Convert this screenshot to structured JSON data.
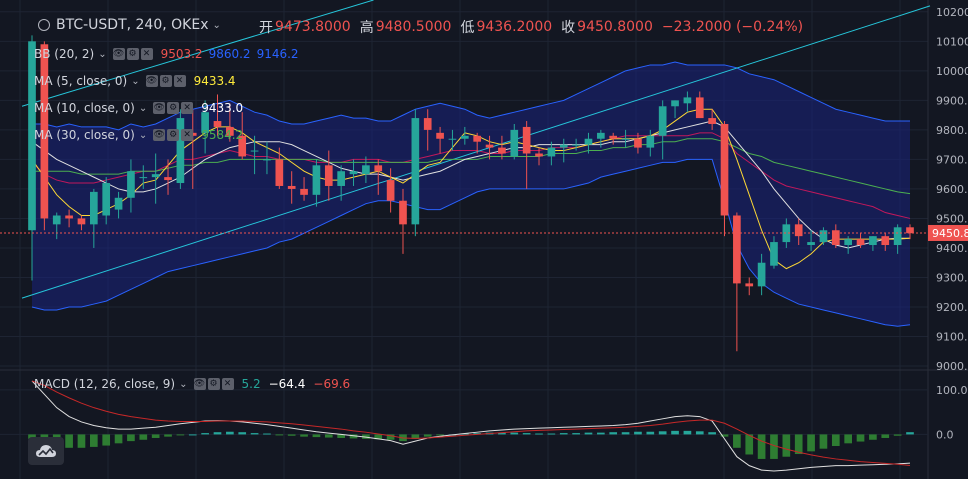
{
  "header": {
    "symbol": "BTC-USDT, 240, OKEx",
    "caret": "⌄",
    "ohlc": [
      {
        "key": "开",
        "value": "9473.8000"
      },
      {
        "key": "高",
        "value": "9480.5000"
      },
      {
        "key": "低",
        "value": "9436.2000"
      },
      {
        "key": "收",
        "value": "9450.8000"
      }
    ],
    "change": "−23.2000 (−0.24%)"
  },
  "indicators": [
    {
      "label": "BB (20, 2)",
      "values": [
        "9503.2",
        "9860.2",
        "9146.2"
      ],
      "colors": [
        "#ef5350",
        "#2962ff",
        "#2962ff"
      ]
    },
    {
      "label": "MA (5, close, 0)",
      "values": [
        "9433.4"
      ],
      "colors": [
        "#ffeb3b"
      ]
    },
    {
      "label": "MA (10, close, 0)",
      "values": [
        "9433.0"
      ],
      "colors": [
        "#ffffff"
      ]
    },
    {
      "label": "MA (30, close, 0)",
      "values": [
        "9584.2"
      ],
      "colors": [
        "#4caf50"
      ]
    }
  ],
  "macd": {
    "label": "MACD (12, 26, close, 9)",
    "values": [
      "5.2",
      "−64.4",
      "−69.6"
    ],
    "colors": [
      "#26a69a",
      "#ffffff",
      "#ef5350"
    ]
  },
  "buttons": {
    "eye": "👁",
    "gear": "⚙",
    "close": "✕"
  },
  "price_label": "9450.8",
  "colors": {
    "up": "#26a69a",
    "down": "#ef5350",
    "bg": "#131722",
    "grid": "#1e2433",
    "band": "#1a237e",
    "trend": "#26c6da"
  },
  "chart_data": [
    {
      "type": "candlestick",
      "title": "BTC-USDT, 240, OKEx",
      "y_ticks": [
        9000,
        9100,
        9200,
        9300,
        9400,
        9500,
        9600,
        9700,
        9800,
        9900,
        10000,
        10100,
        10200
      ],
      "y_tick_labels": [
        "9000.0000",
        "9100.0000",
        "9200.0000",
        "9300.0000",
        "9400.0000",
        "9500.0000",
        "9600.0000",
        "9700.0000",
        "9800.0000",
        "9900.0000",
        "10000.0000",
        "10100.0000",
        "10200.0000"
      ],
      "ylim": [
        8990,
        10240
      ],
      "last_price": 9450.8,
      "candles": [
        [
          9460,
          10120,
          9290,
          10100
        ],
        [
          10090,
          10100,
          9460,
          9500
        ],
        [
          9480,
          9520,
          9430,
          9510
        ],
        [
          9510,
          9530,
          9470,
          9500
        ],
        [
          9500,
          9510,
          9460,
          9480
        ],
        [
          9480,
          9600,
          9400,
          9590
        ],
        [
          9510,
          9640,
          9480,
          9620
        ],
        [
          9530,
          9590,
          9500,
          9570
        ],
        [
          9570,
          9700,
          9520,
          9660
        ],
        [
          9640,
          9680,
          9600,
          9640
        ],
        [
          9640,
          9720,
          9550,
          9650
        ],
        [
          9640,
          9700,
          9580,
          9630
        ],
        [
          9620,
          9870,
          9600,
          9840
        ],
        [
          9790,
          9870,
          9600,
          9780
        ],
        [
          9790,
          9900,
          9720,
          9860
        ],
        [
          9830,
          9920,
          9780,
          9810
        ],
        [
          9810,
          9890,
          9760,
          9780
        ],
        [
          9780,
          9860,
          9700,
          9710
        ],
        [
          9730,
          9780,
          9650,
          9730
        ],
        [
          9700,
          9760,
          9650,
          9700
        ],
        [
          9700,
          9740,
          9600,
          9610
        ],
        [
          9610,
          9660,
          9550,
          9600
        ],
        [
          9600,
          9640,
          9560,
          9580
        ],
        [
          9580,
          9700,
          9540,
          9680
        ],
        [
          9680,
          9730,
          9560,
          9610
        ],
        [
          9610,
          9680,
          9560,
          9660
        ],
        [
          9650,
          9700,
          9610,
          9660
        ],
        [
          9650,
          9710,
          9620,
          9680
        ],
        [
          9680,
          9700,
          9580,
          9660
        ],
        [
          9630,
          9670,
          9520,
          9560
        ],
        [
          9560,
          9600,
          9380,
          9480
        ],
        [
          9480,
          9870,
          9440,
          9840
        ],
        [
          9840,
          9870,
          9730,
          9800
        ],
        [
          9790,
          9810,
          9720,
          9770
        ],
        [
          9770,
          9800,
          9730,
          9770
        ],
        [
          9770,
          9810,
          9750,
          9780
        ],
        [
          9780,
          9790,
          9720,
          9760
        ],
        [
          9750,
          9780,
          9700,
          9740
        ],
        [
          9740,
          9780,
          9700,
          9720
        ],
        [
          9710,
          9820,
          9700,
          9800
        ],
        [
          9810,
          9830,
          9600,
          9720
        ],
        [
          9720,
          9740,
          9680,
          9710
        ],
        [
          9710,
          9760,
          9680,
          9740
        ],
        [
          9740,
          9770,
          9690,
          9750
        ],
        [
          9750,
          9770,
          9730,
          9750
        ],
        [
          9750,
          9790,
          9720,
          9770
        ],
        [
          9770,
          9800,
          9740,
          9790
        ],
        [
          9780,
          9790,
          9750,
          9770
        ],
        [
          9770,
          9800,
          9740,
          9770
        ],
        [
          9770,
          9790,
          9720,
          9740
        ],
        [
          9740,
          9800,
          9710,
          9780
        ],
        [
          9780,
          9900,
          9700,
          9880
        ],
        [
          9880,
          9900,
          9840,
          9900
        ],
        [
          9890,
          9930,
          9860,
          9910
        ],
        [
          9910,
          9930,
          9840,
          9840
        ],
        [
          9840,
          9870,
          9800,
          9820
        ],
        [
          9820,
          9830,
          9440,
          9510
        ],
        [
          9510,
          9520,
          9050,
          9280
        ],
        [
          9280,
          9300,
          9240,
          9270
        ],
        [
          9270,
          9380,
          9240,
          9350
        ],
        [
          9340,
          9440,
          9330,
          9420
        ],
        [
          9420,
          9500,
          9400,
          9480
        ],
        [
          9480,
          9500,
          9410,
          9440
        ],
        [
          9410,
          9460,
          9390,
          9420
        ],
        [
          9420,
          9470,
          9410,
          9460
        ],
        [
          9460,
          9480,
          9400,
          9410
        ],
        [
          9410,
          9440,
          9380,
          9430
        ],
        [
          9430,
          9450,
          9400,
          9410
        ],
        [
          9410,
          9440,
          9390,
          9440
        ],
        [
          9440,
          9450,
          9390,
          9410
        ],
        [
          9410,
          9480,
          9380,
          9470
        ],
        [
          9470,
          9480,
          9430,
          9450
        ]
      ],
      "bb_upper": [
        9820,
        9820,
        9810,
        9820,
        9810,
        9810,
        9810,
        9800,
        9820,
        9810,
        9820,
        9840,
        9860,
        9870,
        9880,
        9890,
        9900,
        9880,
        9860,
        9850,
        9830,
        9820,
        9820,
        9830,
        9840,
        9850,
        9840,
        9840,
        9830,
        9830,
        9850,
        9870,
        9880,
        9890,
        9880,
        9870,
        9850,
        9840,
        9850,
        9860,
        9870,
        9880,
        9890,
        9900,
        9920,
        9940,
        9960,
        9980,
        10000,
        10010,
        10020,
        10020,
        10030,
        10020,
        10020,
        10020,
        10020,
        10010,
        9990,
        9980,
        9970,
        9950,
        9930,
        9910,
        9890,
        9870,
        9860,
        9850,
        9840,
        9830,
        9830,
        9830
      ],
      "bb_middle": [
        9690,
        9650,
        9630,
        9620,
        9620,
        9620,
        9630,
        9640,
        9650,
        9660,
        9660,
        9680,
        9700,
        9700,
        9710,
        9720,
        9730,
        9720,
        9710,
        9710,
        9700,
        9700,
        9700,
        9690,
        9690,
        9690,
        9700,
        9700,
        9700,
        9690,
        9690,
        9700,
        9710,
        9720,
        9730,
        9730,
        9730,
        9720,
        9720,
        9730,
        9730,
        9730,
        9740,
        9740,
        9740,
        9750,
        9760,
        9770,
        9780,
        9780,
        9780,
        9780,
        9780,
        9780,
        9790,
        9790,
        9770,
        9720,
        9690,
        9660,
        9630,
        9610,
        9600,
        9590,
        9580,
        9570,
        9560,
        9550,
        9540,
        9520,
        9510,
        9500
      ],
      "bb_lower": [
        9200,
        9190,
        9190,
        9200,
        9200,
        9210,
        9220,
        9240,
        9260,
        9280,
        9300,
        9320,
        9330,
        9340,
        9350,
        9360,
        9370,
        9380,
        9390,
        9400,
        9420,
        9430,
        9450,
        9470,
        9490,
        9510,
        9530,
        9550,
        9560,
        9560,
        9550,
        9540,
        9530,
        9530,
        9550,
        9570,
        9590,
        9600,
        9600,
        9600,
        9600,
        9600,
        9600,
        9600,
        9610,
        9620,
        9640,
        9650,
        9660,
        9670,
        9680,
        9690,
        9690,
        9700,
        9700,
        9700,
        9560,
        9410,
        9330,
        9280,
        9250,
        9230,
        9210,
        9200,
        9190,
        9180,
        9170,
        9160,
        9150,
        9140,
        9135,
        9140
      ],
      "ma5": [
        9700,
        9640,
        9580,
        9540,
        9510,
        9510,
        9530,
        9550,
        9580,
        9620,
        9630,
        9680,
        9730,
        9760,
        9790,
        9810,
        9810,
        9790,
        9760,
        9740,
        9720,
        9690,
        9660,
        9640,
        9630,
        9630,
        9640,
        9650,
        9660,
        9640,
        9620,
        9650,
        9680,
        9690,
        9740,
        9790,
        9780,
        9760,
        9750,
        9760,
        9750,
        9740,
        9730,
        9730,
        9740,
        9750,
        9760,
        9770,
        9770,
        9770,
        9780,
        9800,
        9830,
        9860,
        9870,
        9870,
        9810,
        9700,
        9580,
        9460,
        9360,
        9330,
        9350,
        9380,
        9420,
        9430,
        9430,
        9430,
        9430,
        9430,
        9430,
        9433
      ],
      "ma10": [
        9760,
        9730,
        9700,
        9680,
        9660,
        9640,
        9620,
        9600,
        9590,
        9590,
        9600,
        9620,
        9640,
        9670,
        9700,
        9720,
        9740,
        9750,
        9760,
        9760,
        9760,
        9750,
        9730,
        9710,
        9690,
        9670,
        9660,
        9650,
        9650,
        9640,
        9630,
        9640,
        9650,
        9660,
        9680,
        9700,
        9710,
        9720,
        9730,
        9740,
        9740,
        9750,
        9750,
        9750,
        9750,
        9750,
        9750,
        9760,
        9760,
        9770,
        9780,
        9790,
        9800,
        9810,
        9820,
        9830,
        9810,
        9760,
        9710,
        9660,
        9600,
        9550,
        9500,
        9460,
        9430,
        9410,
        9400,
        9410,
        9420,
        9430,
        9433,
        9433
      ],
      "ma30": [
        9660,
        9660,
        9660,
        9660,
        9650,
        9650,
        9650,
        9650,
        9660,
        9660,
        9660,
        9670,
        9680,
        9680,
        9690,
        9690,
        9700,
        9700,
        9700,
        9700,
        9700,
        9700,
        9700,
        9700,
        9690,
        9690,
        9690,
        9690,
        9690,
        9690,
        9690,
        9690,
        9690,
        9700,
        9700,
        9700,
        9700,
        9710,
        9710,
        9710,
        9710,
        9710,
        9720,
        9720,
        9720,
        9730,
        9730,
        9740,
        9740,
        9750,
        9750,
        9760,
        9760,
        9770,
        9770,
        9770,
        9760,
        9740,
        9720,
        9710,
        9690,
        9680,
        9670,
        9660,
        9650,
        9640,
        9630,
        9620,
        9610,
        9600,
        9590,
        9584
      ],
      "trend_lines": [
        {
          "from": [
            0,
            9230
          ],
          "to": [
            71,
            10220
          ]
        },
        {
          "from": [
            0,
            9880
          ],
          "to": [
            26,
            10240
          ]
        }
      ]
    },
    {
      "type": "bar",
      "title": "MACD (12, 26, close, 9)",
      "y_ticks": [
        0,
        100
      ],
      "y_tick_labels": [
        "0.0",
        "100.0"
      ],
      "ylim": [
        -100,
        140
      ],
      "histogram": [
        -10,
        -18,
        -25,
        -30,
        -30,
        -28,
        -25,
        -20,
        -15,
        -12,
        -8,
        -5,
        -2,
        0,
        3,
        5,
        6,
        5,
        3,
        2,
        -1,
        -3,
        -5,
        -6,
        -7,
        -8,
        -9,
        -10,
        -11,
        -12,
        -15,
        -10,
        -5,
        -2,
        0,
        2,
        3,
        4,
        4,
        4,
        3,
        2,
        2,
        3,
        3,
        4,
        4,
        5,
        5,
        6,
        6,
        7,
        8,
        8,
        7,
        5,
        -5,
        -30,
        -45,
        -55,
        -55,
        -50,
        -44,
        -38,
        -32,
        -26,
        -20,
        -16,
        -12,
        -8,
        -3,
        5
      ],
      "macd": [
        120,
        90,
        60,
        40,
        28,
        20,
        15,
        12,
        12,
        14,
        16,
        20,
        24,
        27,
        30,
        31,
        30,
        28,
        25,
        22,
        18,
        14,
        10,
        6,
        3,
        0,
        -3,
        -6,
        -10,
        -14,
        -22,
        -15,
        -8,
        -4,
        -1,
        2,
        5,
        8,
        10,
        12,
        13,
        14,
        15,
        16,
        17,
        18,
        19,
        20,
        22,
        25,
        30,
        35,
        40,
        42,
        40,
        30,
        -10,
        -50,
        -70,
        -80,
        -82,
        -80,
        -77,
        -74,
        -72,
        -70,
        -70,
        -69,
        -68,
        -67,
        -66,
        -64.4
      ],
      "signal": [
        120,
        110,
        95,
        82,
        70,
        60,
        52,
        45,
        40,
        36,
        32,
        30,
        29,
        29,
        29,
        30,
        30,
        30,
        29,
        28,
        26,
        24,
        21,
        18,
        15,
        12,
        8,
        5,
        1,
        -3,
        -8,
        -9,
        -8,
        -6,
        -4,
        -2,
        0,
        2,
        4,
        6,
        8,
        9,
        10,
        11,
        12,
        13,
        14,
        15,
        16,
        18,
        20,
        23,
        27,
        30,
        32,
        32,
        25,
        12,
        -2,
        -15,
        -25,
        -33,
        -40,
        -46,
        -51,
        -55,
        -58,
        -61,
        -63,
        -65,
        -67,
        -69.6
      ]
    }
  ]
}
